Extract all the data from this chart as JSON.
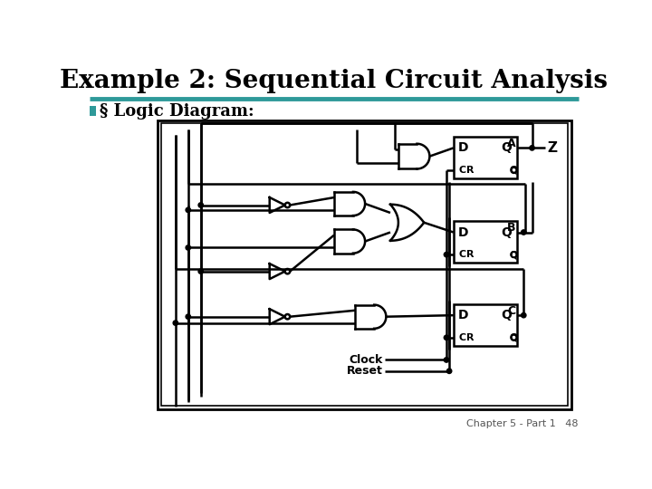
{
  "title": "Example 2: Sequential Circuit Analysis",
  "subtitle": "§ Logic Diagram:",
  "separator_color": "#2E9999",
  "footer": "Chapter 5 - Part 1   48",
  "bg_color": "#ffffff",
  "fg_color": "#000000",
  "teal": "#2E9999"
}
